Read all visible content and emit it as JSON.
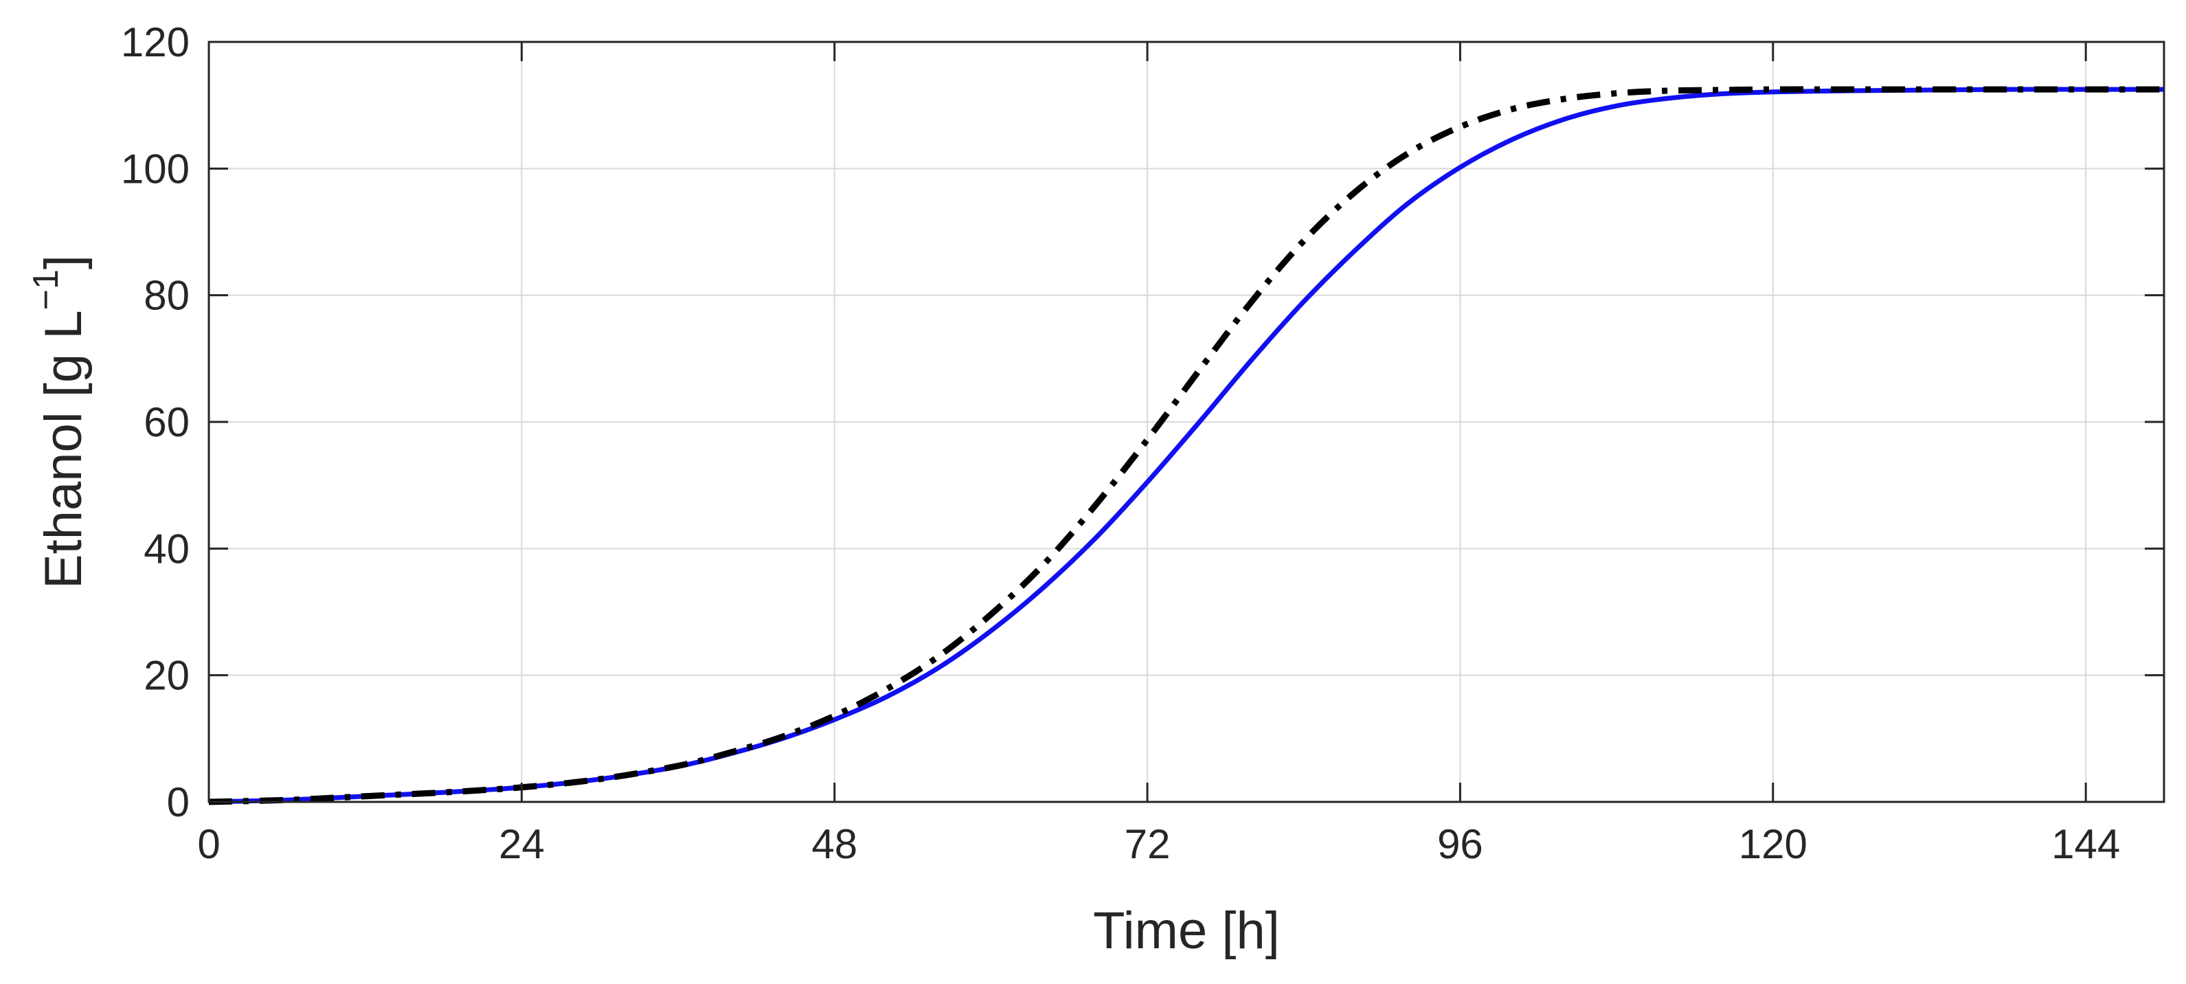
{
  "chart_data": {
    "type": "line",
    "title": "",
    "xlabel": "Time [h]",
    "ylabel": {
      "main": "Ethanol [g L",
      "superscript": "−1",
      "close": "]"
    },
    "xlim": [
      0,
      150
    ],
    "ylim": [
      0,
      120
    ],
    "xticks": [
      0,
      24,
      48,
      72,
      96,
      120,
      144
    ],
    "yticks": [
      0,
      20,
      40,
      60,
      80,
      100,
      120
    ],
    "xtick_labels": [
      "0",
      "24",
      "48",
      "72",
      "96",
      "120",
      "144"
    ],
    "ytick_labels": [
      "0",
      "20",
      "40",
      "60",
      "80",
      "100",
      "120"
    ],
    "grid": true,
    "legend": "none",
    "series": [
      {
        "name": "solid-blue",
        "color": "#1010f0",
        "style": "solid",
        "x": [
          0,
          6,
          12,
          18,
          24,
          30,
          36,
          40,
          44,
          48,
          52,
          56,
          60,
          64,
          68,
          72,
          76,
          80,
          84,
          88,
          92,
          96,
          100,
          104,
          108,
          112,
          116,
          120,
          126,
          132,
          138,
          144,
          150
        ],
        "y": [
          0.0,
          0.3,
          0.9,
          1.5,
          2.3,
          3.6,
          5.6,
          7.6,
          10.0,
          13.0,
          16.6,
          21.2,
          27.0,
          33.8,
          41.6,
          50.5,
          60.0,
          69.8,
          79.0,
          87.2,
          94.5,
          100.2,
          104.6,
          107.8,
          109.9,
          111.1,
          111.8,
          112.1,
          112.3,
          112.4,
          112.5,
          112.5,
          112.5
        ]
      },
      {
        "name": "dash-dot-black",
        "color": "#000000",
        "style": "dashdot",
        "x": [
          0,
          6,
          12,
          18,
          24,
          30,
          36,
          40,
          44,
          48,
          52,
          56,
          60,
          64,
          68,
          72,
          76,
          80,
          84,
          88,
          92,
          96,
          100,
          104,
          108,
          112,
          116,
          120,
          126,
          132,
          138,
          144,
          150
        ],
        "y": [
          0.0,
          0.3,
          0.9,
          1.5,
          2.3,
          3.6,
          5.7,
          7.8,
          10.3,
          13.6,
          17.8,
          23.0,
          29.6,
          37.4,
          46.8,
          57.2,
          68.2,
          79.0,
          88.6,
          96.4,
          102.4,
          106.6,
          109.4,
          111.0,
          111.9,
          112.3,
          112.4,
          112.5,
          112.5,
          112.5,
          112.5,
          112.5,
          112.5
        ]
      }
    ]
  }
}
